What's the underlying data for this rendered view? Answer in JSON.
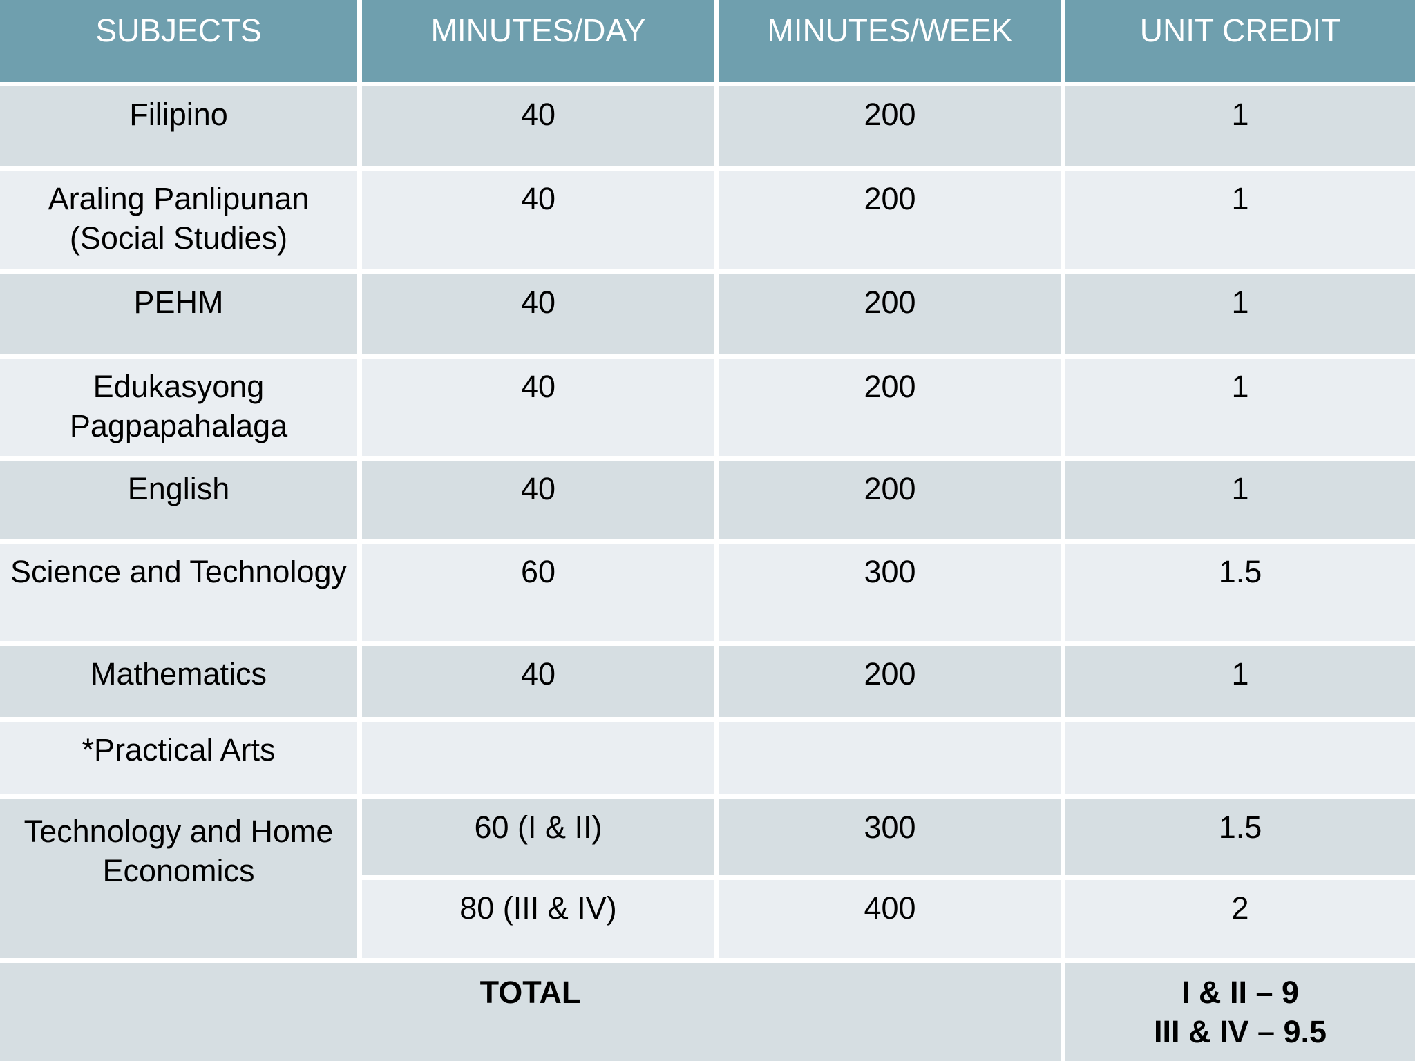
{
  "table": {
    "header": {
      "subjects": "SUBJECTS",
      "minutes_per_day": "MINUTES/DAY",
      "minutes_per_week": "MINUTES/WEEK",
      "unit_credit": "UNIT CREDIT"
    },
    "rows": [
      {
        "subject": "Filipino",
        "minutes_per_day": "40",
        "minutes_per_week": "200",
        "unit_credit": "1"
      },
      {
        "subject": "Araling Panlipunan (Social Studies)",
        "minutes_per_day": "40",
        "minutes_per_week": "200",
        "unit_credit": "1"
      },
      {
        "subject": "PEHM",
        "minutes_per_day": "40",
        "minutes_per_week": "200",
        "unit_credit": "1"
      },
      {
        "subject": "Edukasyong Pagpapahalaga",
        "minutes_per_day": "40",
        "minutes_per_week": "200",
        "unit_credit": "1"
      },
      {
        "subject": "English",
        "minutes_per_day": "40",
        "minutes_per_week": "200",
        "unit_credit": "1"
      },
      {
        "subject": "Science and Technology",
        "minutes_per_day": "60",
        "minutes_per_week": "300",
        "unit_credit": "1.5"
      },
      {
        "subject": "Mathematics",
        "minutes_per_day": "40",
        "minutes_per_week": "200",
        "unit_credit": "1"
      },
      {
        "subject": "*Practical Arts",
        "minutes_per_day": "",
        "minutes_per_week": "",
        "unit_credit": ""
      }
    ],
    "tech_home_economics": {
      "subject": "Technology and Home Economics",
      "sub_rows": [
        {
          "minutes_per_day": "60 (I & II)",
          "minutes_per_week": "300",
          "unit_credit": "1.5"
        },
        {
          "minutes_per_day": "80 (III & IV)",
          "minutes_per_week": "400",
          "unit_credit": "2"
        }
      ]
    },
    "total_row": {
      "label": "TOTAL",
      "unit_credit_line1": "I & II – 9",
      "unit_credit_line2": "III & IV – 9.5"
    }
  },
  "colors": {
    "header_background": "#6f9fae",
    "row_stripe_dark": "#d6dee2",
    "row_stripe_light": "#eaeef2",
    "grid_gap": "#ffffff",
    "header_text": "#ffffff",
    "body_text": "#000000"
  }
}
